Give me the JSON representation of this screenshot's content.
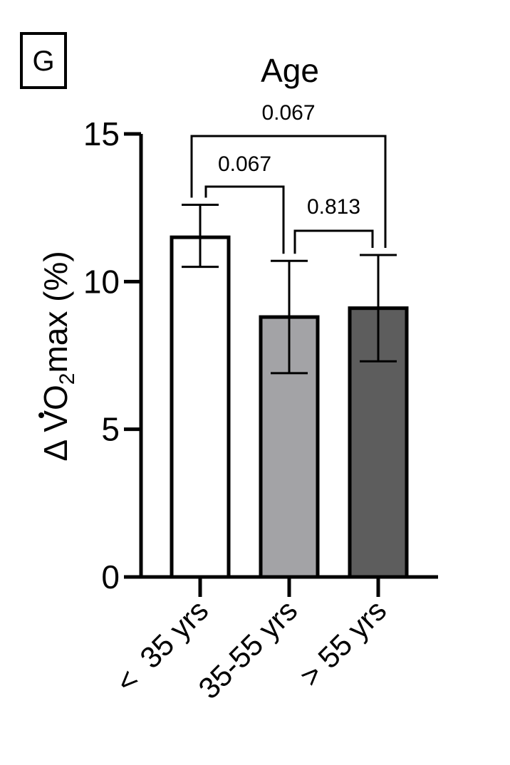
{
  "panel_label": "G",
  "chart_data": {
    "type": "bar",
    "title": "Age",
    "ylabel": {
      "prefix": "Δ V",
      "o": "O",
      "sub": "2",
      "suffix": "max (%)"
    },
    "xlabel": "",
    "ylim": [
      0,
      15
    ],
    "yticks": [
      "0",
      "5",
      "10",
      "15"
    ],
    "categories": [
      "<  35 yrs",
      "35-55 yrs",
      "> 55 yrs"
    ],
    "values": [
      11.5,
      8.8,
      9.1
    ],
    "errors": [
      {
        "low": 10.5,
        "high": 12.6
      },
      {
        "low": 6.9,
        "high": 10.7
      },
      {
        "low": 7.3,
        "high": 10.9
      }
    ],
    "bar_colors": [
      "#ffffff",
      "#a3a3a6",
      "#5d5d5d"
    ],
    "comparisons": [
      {
        "from": 0,
        "to": 1,
        "p": "0.067"
      },
      {
        "from": 1,
        "to": 2,
        "p": "0.813"
      },
      {
        "from": 0,
        "to": 2,
        "p": "0.067"
      }
    ]
  }
}
